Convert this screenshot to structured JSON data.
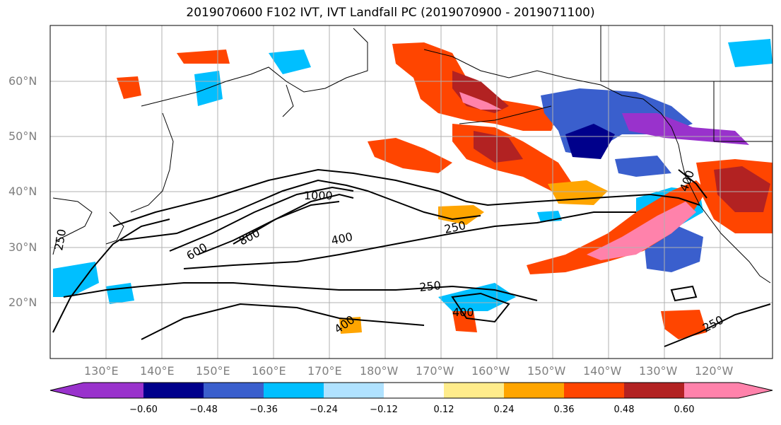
{
  "title": "2019070600 F102 IVT, IVT Landfall PC (2019070900 - 2019071100)",
  "lat_labels": [
    "60°N",
    "50°N",
    "40°N",
    "30°N",
    "20°N"
  ],
  "lon_labels": [
    "130°E",
    "140°E",
    "150°E",
    "160°E",
    "170°E",
    "180°W",
    "170°W",
    "160°W",
    "150°W",
    "140°W",
    "130°W",
    "120°W"
  ],
  "contour_labels": [
    "1000",
    "800",
    "600",
    "400",
    "250",
    "250",
    "400",
    "400",
    "250",
    "400",
    "250"
  ],
  "colorbar": {
    "colors": [
      "#9932cc",
      "#00008b",
      "#3a5fcd",
      "#00bfff",
      "#b0e2ff",
      "#ffffff",
      "#ffec8b",
      "#ffa500",
      "#ff4500",
      "#b22222",
      "#ff82ab"
    ],
    "tick_labels": [
      "−0.60",
      "−0.48",
      "−0.36",
      "−0.24",
      "−0.12",
      "0.12",
      "0.24",
      "0.36",
      "0.48",
      "0.60"
    ]
  },
  "colors": {
    "positive_high": "#ff82ab",
    "positive_mid": "#ff4500",
    "negative_low": "#9932cc",
    "negative_mid": "#00008b",
    "contour": "#000000",
    "grid": "#b0b0b0"
  }
}
